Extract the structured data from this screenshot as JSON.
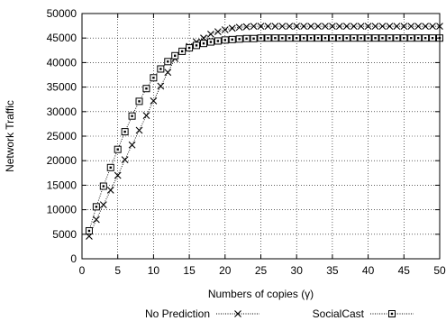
{
  "chart_data": {
    "type": "line",
    "xlabel": "Numbers of copies (γ)",
    "ylabel": "Network Traffic",
    "xlim": [
      0,
      50
    ],
    "ylim": [
      0,
      50000
    ],
    "x_ticks": [
      0,
      5,
      10,
      15,
      20,
      25,
      30,
      35,
      40,
      45,
      50
    ],
    "y_ticks": [
      0,
      5000,
      10000,
      15000,
      20000,
      25000,
      30000,
      35000,
      40000,
      45000,
      50000
    ],
    "grid": true,
    "legend_position": "bottom",
    "x": [
      1,
      2,
      3,
      4,
      5,
      6,
      7,
      8,
      9,
      10,
      11,
      12,
      13,
      14,
      15,
      16,
      17,
      18,
      19,
      20,
      21,
      22,
      23,
      24,
      25,
      26,
      27,
      28,
      29,
      30,
      31,
      32,
      33,
      34,
      35,
      36,
      37,
      38,
      39,
      40,
      41,
      42,
      43,
      44,
      45,
      46,
      47,
      48,
      49,
      50
    ],
    "series": [
      {
        "name": "No Prediction",
        "marker": "x",
        "color": "#000000",
        "values": [
          4600,
          8000,
          11000,
          14000,
          17000,
          20200,
          23200,
          26200,
          29200,
          32200,
          35200,
          38000,
          40800,
          42300,
          43300,
          44200,
          45000,
          45800,
          46300,
          46700,
          47000,
          47200,
          47300,
          47400,
          47400,
          47400,
          47400,
          47400,
          47400,
          47400,
          47400,
          47400,
          47400,
          47400,
          47400,
          47400,
          47400,
          47400,
          47400,
          47400,
          47400,
          47400,
          47400,
          47400,
          47400,
          47400,
          47400,
          47400,
          47400,
          47400
        ]
      },
      {
        "name": "SocialCast",
        "marker": "square",
        "color": "#000000",
        "values": [
          5700,
          10600,
          14800,
          18600,
          22300,
          25900,
          29100,
          32100,
          34700,
          36900,
          38700,
          40200,
          41400,
          42300,
          43000,
          43500,
          43900,
          44200,
          44400,
          44600,
          44700,
          44800,
          44900,
          44900,
          45000,
          45000,
          45000,
          45000,
          45000,
          45000,
          45000,
          45000,
          45000,
          45000,
          45000,
          45000,
          45000,
          45000,
          45000,
          45000,
          45000,
          45000,
          45000,
          45000,
          45000,
          45000,
          45000,
          45000,
          45000,
          45000
        ]
      }
    ]
  }
}
